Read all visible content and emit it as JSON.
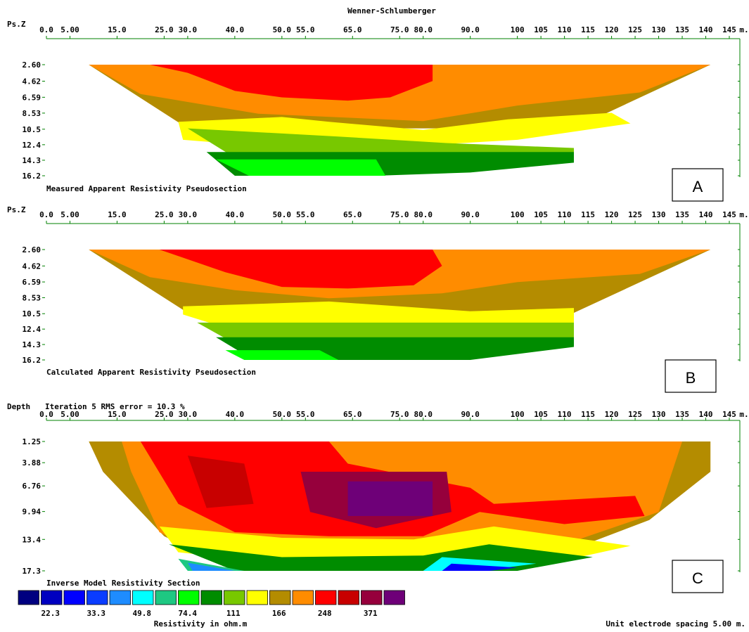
{
  "title": "Wenner-Schlumberger",
  "x_unit": "m.",
  "x_tick_labels": [
    "0.0",
    "5.00",
    "15.0",
    "25.0",
    "30.0",
    "40.0",
    "50.0",
    "55.0",
    "65.0",
    "75.0",
    "80.0",
    "90.0",
    "100",
    "105",
    "110",
    "115",
    "120",
    "125",
    "130",
    "135",
    "140",
    "145"
  ],
  "x_tick_values": [
    0,
    5,
    15,
    25,
    30,
    40,
    50,
    55,
    65,
    75,
    80,
    90,
    100,
    105,
    110,
    115,
    120,
    125,
    130,
    135,
    140,
    145
  ],
  "footer_spacing": "Unit electrode spacing 5.00 m.",
  "colors": {
    "bands": [
      "#000080",
      "#0000c0",
      "#0000ff",
      "#0a3cff",
      "#1e8cff",
      "#00ffff",
      "#1ec882",
      "#00ff00",
      "#008c00",
      "#78c800",
      "#ffff00",
      "#b48c00",
      "#ff8c00",
      "#ff0000",
      "#c80000",
      "#96003c",
      "#6e0078"
    ],
    "frame": "#008000"
  },
  "legend": {
    "title": "Inverse Model Resistivity Section",
    "value_labels": [
      "22.3",
      "33.3",
      "49.8",
      "74.4",
      "111",
      "166",
      "248",
      "371"
    ],
    "unit_label": "Resistivity in ohm.m"
  },
  "chart_data": [
    {
      "type": "heatmap",
      "panel": "A",
      "box_label": "A",
      "ylabel": "Ps.Z",
      "caption": "Measured Apparent Resistivity Pseudosection",
      "y_tick_labels": [
        "2.60",
        "4.62",
        "6.59",
        "8.53",
        "10.5",
        "12.4",
        "14.3",
        "16.2"
      ],
      "y_values": [
        2.6,
        4.62,
        6.59,
        8.53,
        10.5,
        12.4,
        14.3,
        16.2
      ],
      "xlim": [
        0,
        145
      ],
      "bands": [
        {
          "color_index": 11,
          "poly": [
            [
              9,
              2.6
            ],
            [
              141,
              2.6
            ],
            [
              112,
              10.4
            ],
            [
              30,
              10.4
            ]
          ]
        },
        {
          "color_index": 12,
          "poly": [
            [
              9,
              2.6
            ],
            [
              141,
              2.6
            ],
            [
              126,
              6.0
            ],
            [
              100,
              7.6
            ],
            [
              80,
              9.5
            ],
            [
              45,
              8.6
            ],
            [
              20,
              6.2
            ]
          ]
        },
        {
          "color_index": 13,
          "poly": [
            [
              22,
              2.6
            ],
            [
              82,
              2.6
            ],
            [
              82,
              4.6
            ],
            [
              73,
              6.6
            ],
            [
              64,
              7.0
            ],
            [
              50,
              6.6
            ],
            [
              40,
              5.8
            ],
            [
              30,
              3.6
            ]
          ]
        },
        {
          "color_index": 10,
          "poly": [
            [
              28,
              9.6
            ],
            [
              50,
              9.0
            ],
            [
              60,
              9.6
            ],
            [
              80,
              10.6
            ],
            [
              98,
              9.3
            ],
            [
              120,
              8.5
            ],
            [
              124,
              9.8
            ],
            [
              100,
              11.8
            ],
            [
              70,
              12.8
            ],
            [
              40,
              12.3
            ],
            [
              29,
              11.8
            ]
          ]
        },
        {
          "color_index": 9,
          "poly": [
            [
              30,
              10.4
            ],
            [
              62,
              11.4
            ],
            [
              85,
              12.2
            ],
            [
              112,
              12.8
            ],
            [
              112,
              14.0
            ],
            [
              40,
              14.0
            ]
          ]
        },
        {
          "color_index": 8,
          "poly": [
            [
              34,
              13.3
            ],
            [
              112,
              13.3
            ],
            [
              112,
              14.6
            ],
            [
              90,
              15.8
            ],
            [
              70,
              16.2
            ],
            [
              40,
              16.2
            ]
          ]
        },
        {
          "color_index": 7,
          "poly": [
            [
              36,
              14.2
            ],
            [
              70,
              14.2
            ],
            [
              72,
              16.2
            ],
            [
              43,
              16.2
            ]
          ]
        }
      ]
    },
    {
      "type": "heatmap",
      "panel": "B",
      "box_label": "B",
      "ylabel": "Ps.Z",
      "caption": "Calculated Apparent Resistivity Pseudosection",
      "y_tick_labels": [
        "2.60",
        "4.62",
        "6.59",
        "8.53",
        "10.5",
        "12.4",
        "14.3",
        "16.2"
      ],
      "y_values": [
        2.6,
        4.62,
        6.59,
        8.53,
        10.5,
        12.4,
        14.3,
        16.2
      ],
      "xlim": [
        0,
        145
      ],
      "bands": [
        {
          "color_index": 11,
          "poly": [
            [
              9,
              2.6
            ],
            [
              141,
              2.6
            ],
            [
              112,
              10.4
            ],
            [
              30,
              10.4
            ]
          ]
        },
        {
          "color_index": 12,
          "poly": [
            [
              9,
              2.6
            ],
            [
              141,
              2.6
            ],
            [
              126,
              5.6
            ],
            [
              100,
              6.6
            ],
            [
              84,
              8.0
            ],
            [
              60,
              8.6
            ],
            [
              40,
              7.6
            ],
            [
              22,
              6.0
            ]
          ]
        },
        {
          "color_index": 13,
          "poly": [
            [
              24,
              2.6
            ],
            [
              82,
              2.6
            ],
            [
              84,
              4.6
            ],
            [
              78,
              7.0
            ],
            [
              64,
              7.4
            ],
            [
              50,
              7.2
            ],
            [
              38,
              5.4
            ]
          ]
        },
        {
          "color_index": 10,
          "poly": [
            [
              29,
              9.6
            ],
            [
              60,
              9.0
            ],
            [
              90,
              10.2
            ],
            [
              112,
              9.8
            ],
            [
              112,
              12.6
            ],
            [
              40,
              12.6
            ],
            [
              29,
              10.6
            ]
          ]
        },
        {
          "color_index": 9,
          "poly": [
            [
              32,
              11.6
            ],
            [
              112,
              11.6
            ],
            [
              112,
              14.2
            ],
            [
              40,
              14.2
            ]
          ]
        },
        {
          "color_index": 8,
          "poly": [
            [
              36,
              13.4
            ],
            [
              112,
              13.4
            ],
            [
              112,
              14.6
            ],
            [
              90,
              16.2
            ],
            [
              44,
              16.2
            ]
          ]
        },
        {
          "color_index": 7,
          "poly": [
            [
              38,
              15.0
            ],
            [
              58,
              15.0
            ],
            [
              62,
              16.2
            ],
            [
              42,
              16.2
            ]
          ]
        }
      ]
    },
    {
      "type": "heatmap",
      "panel": "C",
      "box_label": "C",
      "ylabel": "Depth",
      "subtitle": "Iteration 5 RMS error = 10.3 %",
      "y_tick_labels": [
        "1.25",
        "3.88",
        "6.76",
        "9.94",
        "13.4",
        "17.3"
      ],
      "y_values": [
        1.25,
        3.88,
        6.76,
        9.94,
        13.4,
        17.3
      ],
      "xlim": [
        0,
        145
      ],
      "bands": [
        {
          "color_index": 11,
          "poly": [
            [
              9,
              1.25
            ],
            [
              141,
              1.25
            ],
            [
              141,
              5.0
            ],
            [
              128,
              11.0
            ],
            [
              110,
              15.0
            ],
            [
              95,
              17.3
            ],
            [
              40,
              17.3
            ],
            [
              25,
              13.0
            ],
            [
              12,
              5.0
            ]
          ]
        },
        {
          "color_index": 12,
          "poly": [
            [
              16,
              1.25
            ],
            [
              135,
              1.25
            ],
            [
              130,
              10.0
            ],
            [
              110,
              14.0
            ],
            [
              92,
              17.0
            ],
            [
              40,
              17.0
            ],
            [
              24,
              12.5
            ],
            [
              18,
              5.0
            ]
          ]
        },
        {
          "color_index": 13,
          "poly": [
            [
              20,
              1.25
            ],
            [
              60,
              1.25
            ],
            [
              64,
              4.0
            ],
            [
              90,
              7.0
            ],
            [
              95,
              9.0
            ],
            [
              125,
              8.0
            ],
            [
              127,
              10.5
            ],
            [
              110,
              11.5
            ],
            [
              92,
              10.0
            ],
            [
              80,
              13.0
            ],
            [
              60,
              13.0
            ],
            [
              40,
              12.5
            ],
            [
              28,
              9.0
            ]
          ]
        },
        {
          "color_index": 14,
          "poly": [
            [
              30,
              3.0
            ],
            [
              42,
              4.0
            ],
            [
              44,
              9.0
            ],
            [
              34,
              9.5
            ]
          ]
        },
        {
          "color_index": 15,
          "poly": [
            [
              54,
              5.0
            ],
            [
              85,
              5.0
            ],
            [
              86,
              10.0
            ],
            [
              70,
              12.0
            ],
            [
              56,
              10.0
            ]
          ]
        },
        {
          "color_index": 16,
          "poly": [
            [
              64,
              6.2
            ],
            [
              82,
              6.2
            ],
            [
              82,
              10.5
            ],
            [
              64,
              10.5
            ]
          ]
        },
        {
          "color_index": 10,
          "poly": [
            [
              24,
              11.8
            ],
            [
              50,
              13.2
            ],
            [
              78,
              13.4
            ],
            [
              95,
              11.8
            ],
            [
              124,
              14.2
            ],
            [
              110,
              16.0
            ],
            [
              90,
              15.6
            ],
            [
              78,
              16.0
            ],
            [
              50,
              16.4
            ],
            [
              28,
              15.0
            ]
          ]
        },
        {
          "color_index": 8,
          "poly": [
            [
              26,
              14.0
            ],
            [
              50,
              15.6
            ],
            [
              80,
              15.4
            ],
            [
              94,
              14.0
            ],
            [
              116,
              15.6
            ],
            [
              100,
              17.3
            ],
            [
              40,
              17.3
            ]
          ]
        },
        {
          "color_index": 6,
          "poly": [
            [
              28,
              15.8
            ],
            [
              42,
              17.3
            ],
            [
              30,
              17.3
            ]
          ]
        },
        {
          "color_index": 4,
          "poly": [
            [
              30,
              16.3
            ],
            [
              40,
              17.3
            ],
            [
              31,
              17.3
            ]
          ]
        },
        {
          "color_index": 5,
          "poly": [
            [
              84,
              15.6
            ],
            [
              104,
              16.4
            ],
            [
              92,
              17.3
            ],
            [
              80,
              17.3
            ]
          ]
        },
        {
          "color_index": 2,
          "poly": [
            [
              86,
              16.4
            ],
            [
              100,
              16.9
            ],
            [
              94,
              17.3
            ],
            [
              84,
              17.3
            ]
          ]
        }
      ]
    }
  ]
}
